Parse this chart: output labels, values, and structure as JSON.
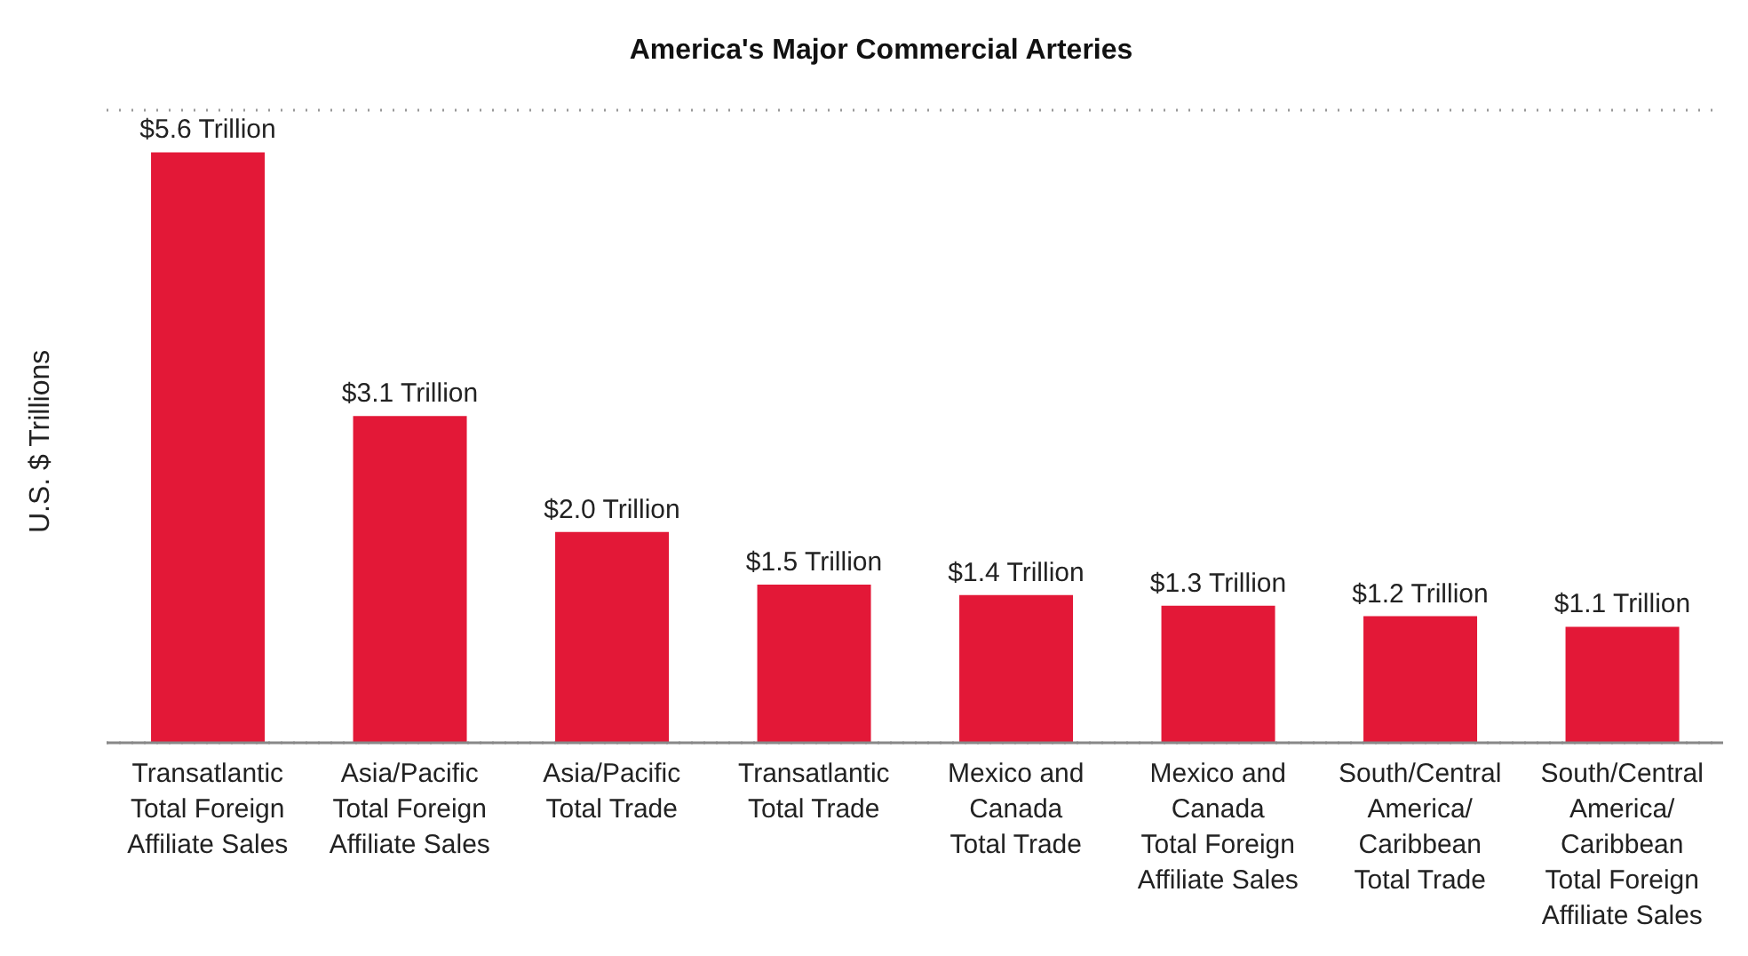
{
  "chart_data": {
    "type": "bar",
    "title": "America's Major Commercial Arteries",
    "ylabel": "U.S. $ Trillions",
    "categories": [
      "Transatlantic\nTotal Foreign\nAffiliate Sales",
      "Asia/Pacific\nTotal Foreign\nAffiliate Sales",
      "Asia/Pacific\nTotal Trade",
      "Transatlantic\nTotal Trade",
      "Mexico and\nCanada\nTotal Trade",
      "Mexico and\nCanada\nTotal Foreign\nAffiliate Sales",
      "South/Central\nAmerica/\nCaribbean\nTotal Trade",
      "South/Central\nAmerica/\nCaribbean\nTotal Foreign\nAffiliate Sales"
    ],
    "values": [
      5.6,
      3.1,
      2.0,
      1.5,
      1.4,
      1.3,
      1.2,
      1.1
    ],
    "value_labels": [
      "$5.6 Trillion",
      "$3.1 Trillion",
      "$2.0 Trillion",
      "$1.5 Trillion",
      "$1.4 Trillion",
      "$1.3 Trillion",
      "$1.2 Trillion",
      "$1.1 Trillion"
    ],
    "color": "#e31837",
    "ylim": [
      0,
      6
    ],
    "grid": "y",
    "tick_labels": "x"
  }
}
